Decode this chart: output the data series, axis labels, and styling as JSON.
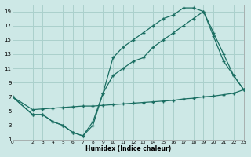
{
  "xlabel": "Humidex (Indice chaleur)",
  "bg_color": "#cde8e6",
  "grid_color": "#aad0cc",
  "line_color": "#1a6e62",
  "xlim": [
    0,
    23
  ],
  "ylim": [
    1,
    20
  ],
  "xticks": [
    0,
    2,
    3,
    4,
    5,
    6,
    7,
    8,
    9,
    10,
    11,
    12,
    13,
    14,
    15,
    16,
    17,
    18,
    19,
    20,
    21,
    22,
    23
  ],
  "yticks": [
    1,
    3,
    5,
    7,
    9,
    11,
    13,
    15,
    17,
    19
  ],
  "line1_x": [
    0,
    2,
    3,
    4,
    5,
    6,
    7,
    8,
    9,
    10,
    11,
    12,
    13,
    14,
    15,
    16,
    17,
    18,
    19,
    20,
    21,
    22,
    23
  ],
  "line1_y": [
    7,
    4.5,
    4.5,
    3.5,
    3.0,
    2.0,
    1.5,
    3.0,
    7.5,
    12.5,
    14,
    15,
    16,
    17,
    18,
    18.5,
    19.5,
    19.5,
    19.0,
    15.5,
    12,
    10,
    8
  ],
  "line2_x": [
    0,
    2,
    3,
    4,
    5,
    6,
    7,
    8,
    9,
    10,
    11,
    12,
    13,
    14,
    15,
    16,
    17,
    18,
    19,
    20,
    21,
    22,
    23
  ],
  "line2_y": [
    7,
    4.5,
    4.5,
    3.5,
    3.0,
    2.0,
    1.5,
    3.5,
    7.5,
    10,
    11,
    12,
    12.5,
    14,
    15,
    16,
    17,
    18,
    19,
    16,
    13,
    10,
    8
  ],
  "line3_x": [
    0,
    2,
    3,
    4,
    5,
    6,
    7,
    8,
    9,
    10,
    11,
    12,
    13,
    14,
    15,
    16,
    17,
    18,
    19,
    20,
    21,
    22,
    23
  ],
  "line3_y": [
    7,
    5.2,
    5.3,
    5.4,
    5.5,
    5.6,
    5.7,
    5.7,
    5.8,
    5.9,
    6.0,
    6.1,
    6.2,
    6.3,
    6.4,
    6.5,
    6.7,
    6.8,
    7.0,
    7.1,
    7.3,
    7.5,
    8.0
  ]
}
